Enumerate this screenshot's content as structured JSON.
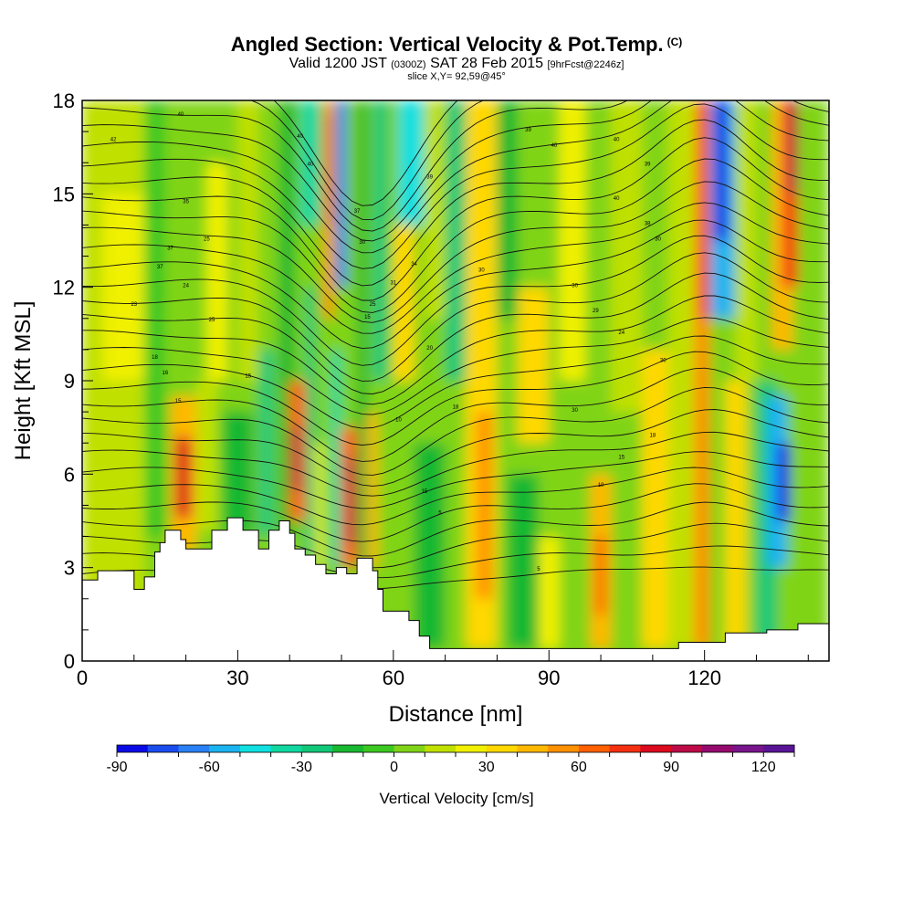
{
  "header": {
    "title": "Angled Section: Vertical Velocity & Pot.Temp.",
    "title_tag": "(C)",
    "valid_prefix": "Valid 1200 JST",
    "utc_time": "(0300Z)",
    "valid_date": "SAT 28 Feb 2015",
    "forecast": "[9hrFcst@2246z]",
    "slice": "slice X,Y= 92,59@45°"
  },
  "chart_data": {
    "type": "heatmap",
    "xlabel": "Distance [nm]",
    "ylabel": "Height [Kft MSL]",
    "xlim": [
      0,
      144
    ],
    "ylim": [
      0,
      18
    ],
    "x_ticks": [
      0,
      30,
      60,
      90,
      120
    ],
    "y_ticks": [
      0,
      3,
      6,
      9,
      12,
      15,
      18
    ],
    "colorbar": {
      "label": "Vertical Velocity [cm/s]",
      "min": -90,
      "max": 130,
      "step": 10,
      "tick_values": [
        -90,
        -60,
        -30,
        0,
        30,
        60,
        90,
        120
      ],
      "colors": [
        "#0a0ae6",
        "#1a4cf0",
        "#2a80f5",
        "#1ab4f0",
        "#10e0e0",
        "#10d8a0",
        "#10c878",
        "#18b830",
        "#3cc820",
        "#80d418",
        "#c0e000",
        "#f0f000",
        "#ffd800",
        "#ffb800",
        "#ff9000",
        "#ff6000",
        "#f53010",
        "#dc0a1e",
        "#be0a46",
        "#960a6e",
        "#78148c",
        "#5a1496"
      ]
    },
    "w_cells": [
      {
        "x": [
          0,
          144
        ],
        "y": [
          0,
          18
        ],
        "w": 5
      },
      {
        "x": [
          0,
          12
        ],
        "y": [
          1.8,
          18
        ],
        "w": 12
      },
      {
        "x": [
          4,
          12
        ],
        "y": [
          9,
          15
        ],
        "w": 22
      },
      {
        "x": [
          12,
          16
        ],
        "y": [
          4,
          18
        ],
        "w": -10
      },
      {
        "x": [
          17,
          22
        ],
        "y": [
          3.5,
          8.5
        ],
        "w": 42
      },
      {
        "x": [
          18,
          21
        ],
        "y": [
          4.6,
          7.2
        ],
        "w": 85
      },
      {
        "x": [
          22,
          26
        ],
        "y": [
          4.2,
          9
        ],
        "w": 18
      },
      {
        "x": [
          24,
          28
        ],
        "y": [
          9,
          16
        ],
        "w": 20
      },
      {
        "x": [
          27,
          33
        ],
        "y": [
          4,
          8
        ],
        "w": -15
      },
      {
        "x": [
          30,
          34
        ],
        "y": [
          9,
          18
        ],
        "w": 15
      },
      {
        "x": [
          34,
          37
        ],
        "y": [
          4,
          10
        ],
        "w": -25
      },
      {
        "x": [
          38,
          41
        ],
        "y": [
          4,
          18
        ],
        "w": -20
      },
      {
        "x": [
          40,
          43
        ],
        "y": [
          4.5,
          9
        ],
        "w": 60
      },
      {
        "x": [
          40.5,
          42
        ],
        "y": [
          5.5,
          7.5
        ],
        "w": 92
      },
      {
        "x": [
          43,
          45
        ],
        "y": [
          3,
          12
        ],
        "w": -30
      },
      {
        "x": [
          42,
          46
        ],
        "y": [
          14,
          18
        ],
        "w": -40
      },
      {
        "x": [
          45,
          46.5
        ],
        "y": [
          3,
          7
        ],
        "w": 20
      },
      {
        "x": [
          46.5,
          48.5
        ],
        "y": [
          11,
          18
        ],
        "w": 50
      },
      {
        "x": [
          47,
          48
        ],
        "y": [
          14,
          17.5
        ],
        "w": 72
      },
      {
        "x": [
          48,
          50
        ],
        "y": [
          3,
          10
        ],
        "w": -35
      },
      {
        "x": [
          49,
          51
        ],
        "y": [
          12,
          18
        ],
        "w": -65
      },
      {
        "x": [
          50,
          53
        ],
        "y": [
          3,
          7.5
        ],
        "w": 65
      },
      {
        "x": [
          51,
          52.5
        ],
        "y": [
          3.8,
          6.5
        ],
        "w": 92
      },
      {
        "x": [
          53,
          55
        ],
        "y": [
          3,
          18
        ],
        "w": -20
      },
      {
        "x": [
          55,
          57
        ],
        "y": [
          3,
          8
        ],
        "w": 45
      },
      {
        "x": [
          56,
          59
        ],
        "y": [
          9,
          18
        ],
        "w": -30
      },
      {
        "x": [
          58,
          62
        ],
        "y": [
          1.6,
          8
        ],
        "w": 5
      },
      {
        "x": [
          60,
          64
        ],
        "y": [
          9,
          14
        ],
        "w": 30
      },
      {
        "x": [
          61,
          66
        ],
        "y": [
          14,
          18
        ],
        "w": -50
      },
      {
        "x": [
          64,
          70
        ],
        "y": [
          0.4,
          7
        ],
        "w": -20
      },
      {
        "x": [
          66,
          70
        ],
        "y": [
          11,
          18
        ],
        "w": 15
      },
      {
        "x": [
          70,
          75
        ],
        "y": [
          9,
          18
        ],
        "w": -25
      },
      {
        "x": [
          74,
          80
        ],
        "y": [
          0.4,
          18
        ],
        "w": 35
      },
      {
        "x": [
          76,
          79
        ],
        "y": [
          2,
          8
        ],
        "w": 52
      },
      {
        "x": [
          80,
          84
        ],
        "y": [
          11,
          18
        ],
        "w": -20
      },
      {
        "x": [
          84,
          90
        ],
        "y": [
          7,
          12
        ],
        "w": 30
      },
      {
        "x": [
          82,
          88
        ],
        "y": [
          0.4,
          6
        ],
        "w": -15
      },
      {
        "x": [
          88,
          92
        ],
        "y": [
          0.4,
          4
        ],
        "w": 20
      },
      {
        "x": [
          92,
          97
        ],
        "y": [
          9,
          18
        ],
        "w": 20
      },
      {
        "x": [
          98,
          102
        ],
        "y": [
          0.4,
          6
        ],
        "w": 42
      },
      {
        "x": [
          99,
          101
        ],
        "y": [
          1.5,
          4
        ],
        "w": 62
      },
      {
        "x": [
          102,
          108
        ],
        "y": [
          8,
          18
        ],
        "w": 12
      },
      {
        "x": [
          108,
          113
        ],
        "y": [
          0.4,
          10
        ],
        "w": 32
      },
      {
        "x": [
          113,
          118
        ],
        "y": [
          0.4,
          18
        ],
        "w": 15
      },
      {
        "x": [
          118,
          121
        ],
        "y": [
          0.4,
          18
        ],
        "w": 55
      },
      {
        "x": [
          119,
          121
        ],
        "y": [
          11,
          18
        ],
        "w": 75
      },
      {
        "x": [
          121,
          126
        ],
        "y": [
          11,
          18
        ],
        "w": -60
      },
      {
        "x": [
          122,
          124.5
        ],
        "y": [
          13.5,
          18
        ],
        "w": -90
      },
      {
        "x": [
          124,
          128
        ],
        "y": [
          0.4,
          9
        ],
        "w": 35
      },
      {
        "x": [
          126,
          130
        ],
        "y": [
          9,
          18
        ],
        "w": 10
      },
      {
        "x": [
          130,
          134
        ],
        "y": [
          0.4,
          9
        ],
        "w": -30
      },
      {
        "x": [
          132,
          136
        ],
        "y": [
          3,
          8.5
        ],
        "w": -55
      },
      {
        "x": [
          134,
          136.5
        ],
        "y": [
          4.5,
          7
        ],
        "w": -90
      },
      {
        "x": [
          133,
          137
        ],
        "y": [
          10,
          18
        ],
        "w": 40
      },
      {
        "x": [
          135,
          138
        ],
        "y": [
          12,
          18
        ],
        "w": 75
      },
      {
        "x": [
          136,
          138
        ],
        "y": [
          15,
          18
        ],
        "w": 95
      },
      {
        "x": [
          138,
          144
        ],
        "y": [
          1.2,
          18
        ],
        "w": 8
      }
    ],
    "terrain": [
      {
        "x": 0,
        "h": 2.6
      },
      {
        "x": 3,
        "h": 2.9
      },
      {
        "x": 8,
        "h": 2.9
      },
      {
        "x": 10,
        "h": 2.3
      },
      {
        "x": 12,
        "h": 2.7
      },
      {
        "x": 14,
        "h": 3.5
      },
      {
        "x": 15,
        "h": 3.8
      },
      {
        "x": 16,
        "h": 4.2
      },
      {
        "x": 18,
        "h": 4.2
      },
      {
        "x": 19,
        "h": 3.9
      },
      {
        "x": 20,
        "h": 3.6
      },
      {
        "x": 23,
        "h": 3.6
      },
      {
        "x": 25,
        "h": 4.2
      },
      {
        "x": 28,
        "h": 4.6
      },
      {
        "x": 31,
        "h": 4.2
      },
      {
        "x": 34,
        "h": 3.6
      },
      {
        "x": 36,
        "h": 4.2
      },
      {
        "x": 38,
        "h": 4.5
      },
      {
        "x": 40,
        "h": 4.1
      },
      {
        "x": 41,
        "h": 3.6
      },
      {
        "x": 43,
        "h": 3.4
      },
      {
        "x": 45,
        "h": 3.1
      },
      {
        "x": 47,
        "h": 2.8
      },
      {
        "x": 49,
        "h": 3.0
      },
      {
        "x": 51,
        "h": 2.8
      },
      {
        "x": 53,
        "h": 3.3
      },
      {
        "x": 56,
        "h": 2.9
      },
      {
        "x": 57,
        "h": 2.3
      },
      {
        "x": 58,
        "h": 1.6
      },
      {
        "x": 63,
        "h": 1.3
      },
      {
        "x": 65,
        "h": 0.8
      },
      {
        "x": 67,
        "h": 0.4
      },
      {
        "x": 113,
        "h": 0.4
      },
      {
        "x": 115,
        "h": 0.6
      },
      {
        "x": 120,
        "h": 0.6
      },
      {
        "x": 124,
        "h": 0.9
      },
      {
        "x": 132,
        "h": 1.0
      },
      {
        "x": 138,
        "h": 1.2
      },
      {
        "x": 144,
        "h": 1.2
      }
    ],
    "contour_labels": [
      {
        "x": 18.5,
        "y": 8.3,
        "text": "15"
      },
      {
        "x": 32,
        "y": 9.1,
        "text": "15"
      },
      {
        "x": 55,
        "y": 11.0,
        "text": "15"
      },
      {
        "x": 77,
        "y": 12.5,
        "text": "30"
      },
      {
        "x": 61,
        "y": 7.7,
        "text": "10"
      },
      {
        "x": 66,
        "y": 5.4,
        "text": "15"
      },
      {
        "x": 69,
        "y": 4.7,
        "text": "5"
      },
      {
        "x": 88,
        "y": 2.9,
        "text": "5"
      },
      {
        "x": 100,
        "y": 5.6,
        "text": "10"
      },
      {
        "x": 104,
        "y": 6.5,
        "text": "15"
      },
      {
        "x": 110,
        "y": 7.2,
        "text": "18"
      },
      {
        "x": 95,
        "y": 8.0,
        "text": "30"
      },
      {
        "x": 112,
        "y": 9.6,
        "text": "30"
      },
      {
        "x": 104,
        "y": 10.5,
        "text": "24"
      },
      {
        "x": 99,
        "y": 11.2,
        "text": "29"
      },
      {
        "x": 20,
        "y": 12.0,
        "text": "24"
      },
      {
        "x": 25,
        "y": 10.9,
        "text": "25"
      },
      {
        "x": 10,
        "y": 11.4,
        "text": "23"
      },
      {
        "x": 14,
        "y": 9.7,
        "text": "18"
      },
      {
        "x": 16,
        "y": 9.2,
        "text": "16"
      },
      {
        "x": 17,
        "y": 13.2,
        "text": "37"
      },
      {
        "x": 20,
        "y": 14.7,
        "text": "35"
      },
      {
        "x": 24,
        "y": 13.5,
        "text": "25"
      },
      {
        "x": 15,
        "y": 12.6,
        "text": "37"
      },
      {
        "x": 6,
        "y": 16.7,
        "text": "42"
      },
      {
        "x": 19,
        "y": 17.5,
        "text": "40"
      },
      {
        "x": 42,
        "y": 16.8,
        "text": "40"
      },
      {
        "x": 44,
        "y": 15.9,
        "text": "40"
      },
      {
        "x": 53,
        "y": 14.4,
        "text": "37"
      },
      {
        "x": 54,
        "y": 13.4,
        "text": "30"
      },
      {
        "x": 60,
        "y": 12.1,
        "text": "31"
      },
      {
        "x": 56,
        "y": 11.4,
        "text": "25"
      },
      {
        "x": 64,
        "y": 12.7,
        "text": "34"
      },
      {
        "x": 67,
        "y": 10.0,
        "text": "20"
      },
      {
        "x": 72,
        "y": 8.1,
        "text": "18"
      },
      {
        "x": 67,
        "y": 15.5,
        "text": "39"
      },
      {
        "x": 86,
        "y": 17.0,
        "text": "39"
      },
      {
        "x": 91,
        "y": 16.5,
        "text": "40"
      },
      {
        "x": 103,
        "y": 14.8,
        "text": "40"
      },
      {
        "x": 103,
        "y": 16.7,
        "text": "40"
      },
      {
        "x": 109,
        "y": 14.0,
        "text": "38"
      },
      {
        "x": 109,
        "y": 15.9,
        "text": "39"
      },
      {
        "x": 111,
        "y": 13.5,
        "text": "30"
      },
      {
        "x": 95,
        "y": 12.0,
        "text": "30"
      }
    ]
  }
}
